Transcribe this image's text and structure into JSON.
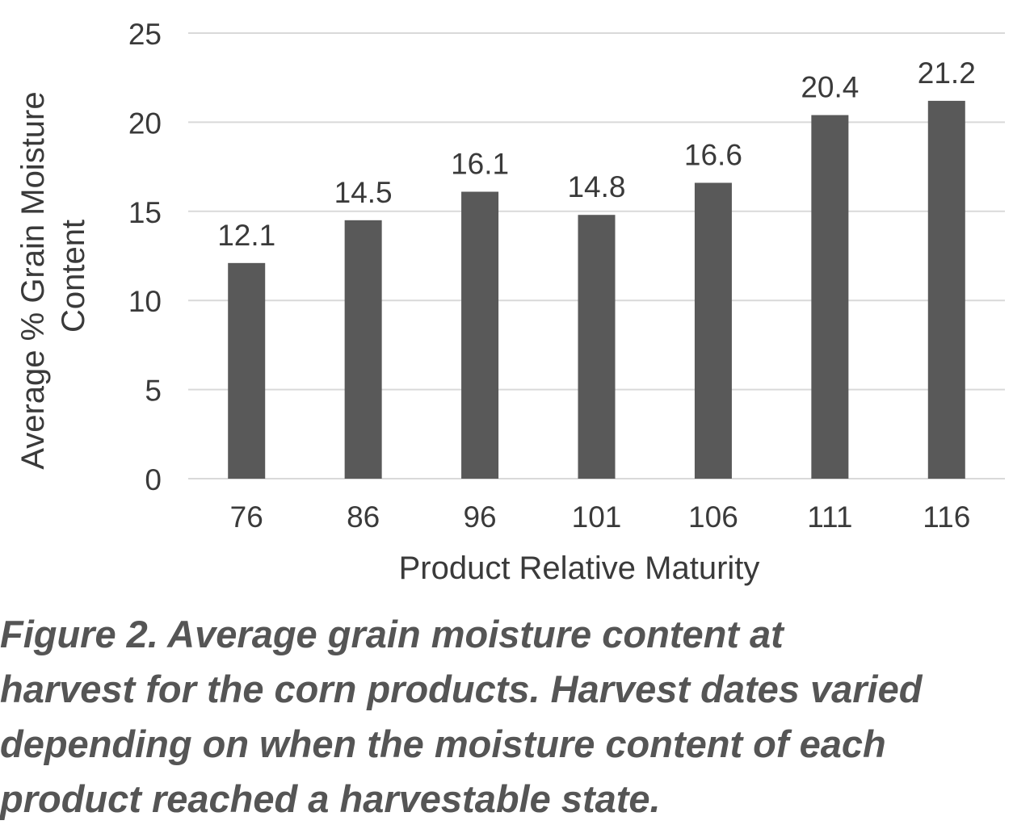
{
  "chart_data": {
    "type": "bar",
    "categories": [
      "76",
      "86",
      "96",
      "101",
      "106",
      "111",
      "116"
    ],
    "values": [
      12.1,
      14.5,
      16.1,
      14.8,
      16.6,
      20.4,
      21.2
    ],
    "data_labels": [
      "12.1",
      "14.5",
      "16.1",
      "14.8",
      "16.6",
      "20.4",
      "21.2"
    ],
    "xlabel": "Product Relative Maturity",
    "ylabel_lines": [
      "Average % Grain Moisture",
      "Content"
    ],
    "ylim": [
      0,
      25
    ],
    "yticks": [
      0,
      5,
      10,
      15,
      20,
      25
    ],
    "grid": true,
    "bar_color": "#595959",
    "grid_color": "#d9d9d9"
  },
  "caption": {
    "lines": [
      "Figure 2. Average grain moisture content at",
      "harvest for the corn products. Harvest dates varied",
      "depending on when the moisture content of each",
      "product reached a harvestable state."
    ]
  }
}
